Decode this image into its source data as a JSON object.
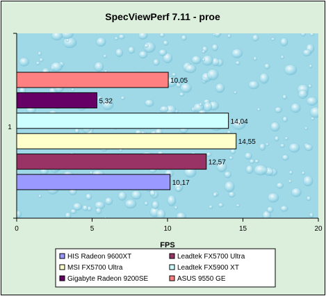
{
  "chart_data": {
    "type": "bar",
    "orientation": "horizontal",
    "title": "SpecViewPerf 7.11 - proe",
    "xlabel": "FPS",
    "ylabel": "",
    "categories": [
      "1"
    ],
    "xlim": [
      0,
      20
    ],
    "x_ticks": [
      0,
      5,
      10,
      15,
      20
    ],
    "grid": false,
    "legend_position": "bottom",
    "plot_background": "water-drops texture",
    "series": [
      {
        "name": "HIS Radeon 9600XT",
        "value": 10.17,
        "label": "10,17",
        "color": "#9999ff"
      },
      {
        "name": "Leadtek FX5700 Ultra",
        "value": 12.57,
        "label": "12,57",
        "color": "#993366"
      },
      {
        "name": "MSI FX5700 Ultra",
        "value": 14.55,
        "label": "14,55",
        "color": "#ffffcc"
      },
      {
        "name": "Leadtek FX5900 XT",
        "value": 14.04,
        "label": "14,04",
        "color": "#ccffff"
      },
      {
        "name": "Gigabyte Radeon 9200SE",
        "value": 5.32,
        "label": "5,32",
        "color": "#660066"
      },
      {
        "name": "ASUS 9550 GE",
        "value": 10.05,
        "label": "10,05",
        "color": "#ff8080"
      }
    ]
  }
}
